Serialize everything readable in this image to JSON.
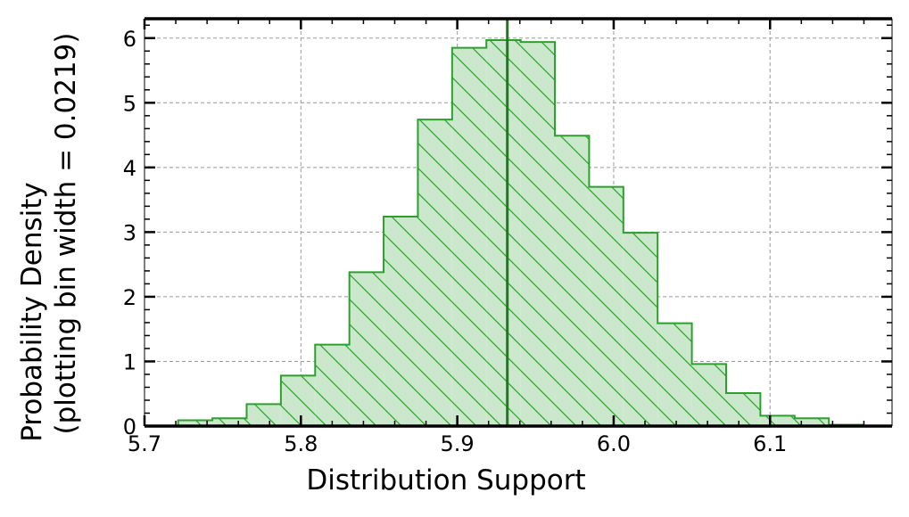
{
  "chart_data": {
    "type": "histogram",
    "title": "",
    "xlabel": "Distribution Support",
    "ylabel_line1": "Probability Density",
    "ylabel_line2": "(plotting bin width = 0.0219)",
    "xlim": [
      5.7,
      6.178
    ],
    "ylim": [
      0,
      6.3
    ],
    "xticks": [
      5.7,
      5.8,
      5.9,
      6.0,
      6.1
    ],
    "xtick_labels": [
      "5.7",
      "5.8",
      "5.9",
      "6.0",
      "6.1"
    ],
    "yticks": [
      0,
      1,
      2,
      3,
      4,
      5,
      6
    ],
    "ytick_labels": [
      "0",
      "1",
      "2",
      "3",
      "4",
      "5",
      "6"
    ],
    "grid": true,
    "fill_color": "#cce8cc",
    "edge_color": "#2ca02c",
    "hatch_color": "#2ca02c",
    "vline_color": "#1f7a1f",
    "vline_x": 5.932,
    "bins": [
      {
        "x0": 5.7215,
        "x1": 5.7434,
        "density": 0.09
      },
      {
        "x0": 5.7434,
        "x1": 5.7653,
        "density": 0.12
      },
      {
        "x0": 5.7653,
        "x1": 5.7872,
        "density": 0.34
      },
      {
        "x0": 5.7872,
        "x1": 5.8091,
        "density": 0.78
      },
      {
        "x0": 5.8091,
        "x1": 5.831,
        "density": 1.26
      },
      {
        "x0": 5.831,
        "x1": 5.8529,
        "density": 2.38
      },
      {
        "x0": 5.8529,
        "x1": 5.8748,
        "density": 3.24
      },
      {
        "x0": 5.8748,
        "x1": 5.8967,
        "density": 4.74
      },
      {
        "x0": 5.8967,
        "x1": 5.9186,
        "density": 5.85
      },
      {
        "x0": 5.9186,
        "x1": 5.9405,
        "density": 5.97
      },
      {
        "x0": 5.9405,
        "x1": 5.9624,
        "density": 5.94
      },
      {
        "x0": 5.9624,
        "x1": 5.9843,
        "density": 4.49
      },
      {
        "x0": 5.9843,
        "x1": 6.0062,
        "density": 3.7
      },
      {
        "x0": 6.0062,
        "x1": 6.0281,
        "density": 2.99
      },
      {
        "x0": 6.0281,
        "x1": 6.05,
        "density": 1.59
      },
      {
        "x0": 6.05,
        "x1": 6.0719,
        "density": 0.96
      },
      {
        "x0": 6.0719,
        "x1": 6.0938,
        "density": 0.51
      },
      {
        "x0": 6.0938,
        "x1": 6.1157,
        "density": 0.16
      },
      {
        "x0": 6.1157,
        "x1": 6.1376,
        "density": 0.12
      },
      {
        "x0": 6.1376,
        "x1": 6.1595,
        "density": 0.02
      }
    ]
  }
}
